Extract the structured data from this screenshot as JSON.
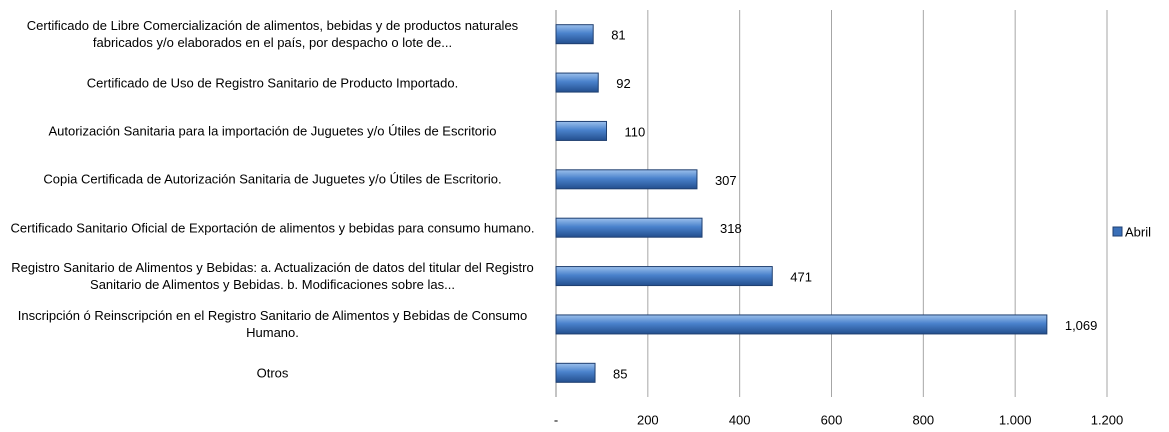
{
  "chart_data": {
    "type": "barh",
    "categories": [
      "Certificado de Libre Comercialización de alimentos, bebidas y de productos naturales fabricados y/o elaborados en el país, por despacho o lote de...",
      "Certificado de Uso de Registro Sanitario de Producto Importado.",
      "Autorización Sanitaria para la importación de Juguetes y/o Útiles de Escritorio",
      "Copia Certificada de Autorización Sanitaria de Juguetes y/o Útiles de Escritorio.",
      "Certificado Sanitario Oficial de Exportación de alimentos y bebidas para consumo humano.",
      "Registro Sanitario de Alimentos y Bebidas: a. Actualización de datos del titular del Registro Sanitario de Alimentos y Bebidas. b. Modificaciones sobre las...",
      "Inscripción ó Reinscripción en el Registro Sanitario de Alimentos y Bebidas de Consumo Humano.",
      "Otros"
    ],
    "series": [
      {
        "name": "Abril",
        "color": "#3a6fb8",
        "values": [
          81,
          92,
          110,
          307,
          318,
          471,
          1069,
          85
        ],
        "value_labels": [
          "81",
          "92",
          "110",
          "307",
          "318",
          "471",
          "1,069",
          "85"
        ]
      }
    ],
    "xlim": [
      0,
      1200
    ],
    "xticks": [
      {
        "value": 0,
        "label": "-"
      },
      200,
      400,
      600,
      800,
      {
        "value": 1000,
        "label": "1.000"
      },
      {
        "value": 1200,
        "label": "1.200"
      }
    ],
    "grid": true,
    "legend": "right"
  }
}
